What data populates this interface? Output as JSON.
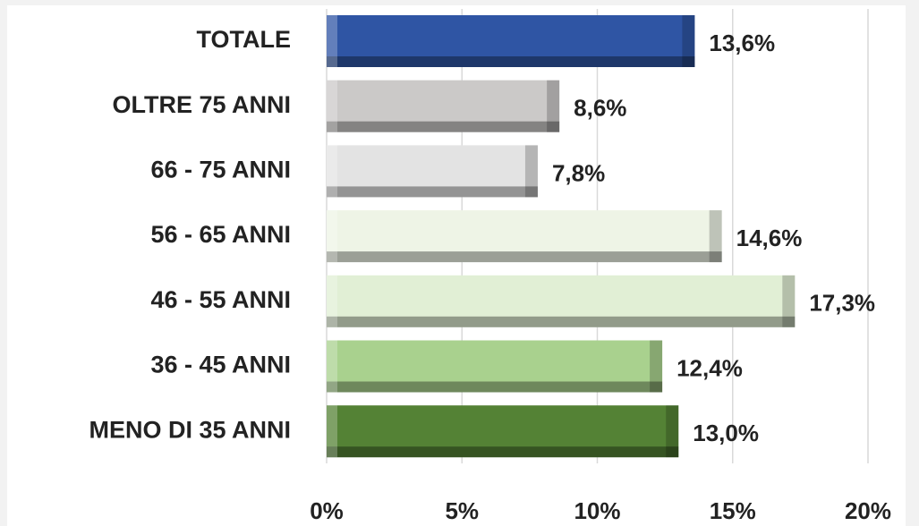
{
  "chart_data": {
    "type": "barh",
    "categories": [
      "TOTALE",
      "OLTRE 75 ANNI",
      "66 - 75 ANNI",
      "56 - 65 ANNI",
      "46 - 55 ANNI",
      "36 - 45 ANNI",
      "MENO DI 35 ANNI"
    ],
    "values": [
      13.6,
      8.6,
      7.8,
      14.6,
      17.3,
      12.4,
      13.0
    ],
    "value_labels": [
      "13,6%",
      "8,6%",
      "7,8%",
      "14,6%",
      "17,3%",
      "12,4%",
      "13,0%"
    ],
    "colors": [
      "#2f55a4",
      "#cbc9c8",
      "#e3e3e3",
      "#eef4e6",
      "#e1efd5",
      "#a9d18e",
      "#548235"
    ],
    "xlim": [
      0,
      20
    ],
    "xticks": [
      {
        "value": 0,
        "label": "0%"
      },
      {
        "value": 5,
        "label": "5%"
      },
      {
        "value": 10,
        "label": "10%"
      },
      {
        "value": 15,
        "label": "15%"
      },
      {
        "value": 20,
        "label": "20%"
      }
    ],
    "grid": true
  }
}
